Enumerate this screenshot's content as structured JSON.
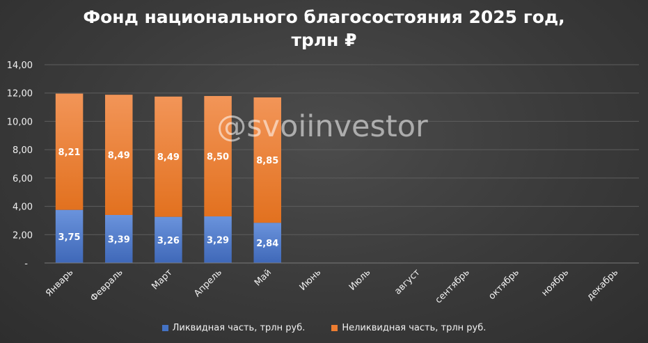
{
  "title_line1": "Фонд национального благосостояния 2025 год,",
  "title_line2": "трлн ₽",
  "watermark": "@svoiinvestor",
  "colors": {
    "liquid": "#4472c4",
    "illiquid": "#ed7d31",
    "axis_text": "#f2f2f2",
    "grid": "#5e5e5e"
  },
  "chart_data": {
    "type": "bar",
    "stacked": true,
    "title": "Фонд национального благосостояния 2025 год, трлн ₽",
    "categories": [
      "Январь",
      "Февраль",
      "Март",
      "Апрель",
      "Май",
      "Июнь",
      "Июль",
      "август",
      "сентябрь",
      "октябрь",
      "ноябрь",
      "декабрь"
    ],
    "series": [
      {
        "name": "Ликвидная часть, трлн руб.",
        "color": "#4472c4",
        "values": [
          3.75,
          3.39,
          3.26,
          3.29,
          2.84,
          null,
          null,
          null,
          null,
          null,
          null,
          null
        ]
      },
      {
        "name": "Неликвидная часть, трлн руб.",
        "color": "#ed7d31",
        "values": [
          8.21,
          8.49,
          8.49,
          8.5,
          8.85,
          null,
          null,
          null,
          null,
          null,
          null,
          null
        ]
      }
    ],
    "data_labels": [
      [
        "3,75",
        "3,39",
        "3,26",
        "3,29",
        "2,84"
      ],
      [
        "8,21",
        "8,49",
        "8,49",
        "8,50",
        "8,85"
      ]
    ],
    "ylim": [
      0,
      14
    ],
    "yticks": [
      {
        "value": 0,
        "label": "-"
      },
      {
        "value": 2,
        "label": "2,00"
      },
      {
        "value": 4,
        "label": "4,00"
      },
      {
        "value": 6,
        "label": "6,00"
      },
      {
        "value": 8,
        "label": "8,00"
      },
      {
        "value": 10,
        "label": "10,00"
      },
      {
        "value": 12,
        "label": "12,00"
      },
      {
        "value": 14,
        "label": "14,00"
      }
    ],
    "grid": true,
    "legend_position": "bottom"
  }
}
